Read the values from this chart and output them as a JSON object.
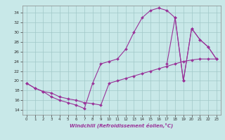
{
  "xlabel": "Windchill (Refroidissement éolien,°C)",
  "xlim": [
    -0.5,
    23.5
  ],
  "ylim": [
    13.0,
    35.5
  ],
  "yticks": [
    14,
    16,
    18,
    20,
    22,
    24,
    26,
    28,
    30,
    32,
    34
  ],
  "xticks": [
    0,
    1,
    2,
    3,
    4,
    5,
    6,
    7,
    8,
    9,
    10,
    11,
    12,
    13,
    14,
    15,
    16,
    17,
    18,
    19,
    20,
    21,
    22,
    23
  ],
  "background_color": "#c8e8e8",
  "grid_color": "#a0c8c8",
  "line_color": "#993399",
  "curve1_x": [
    0,
    1,
    2,
    3,
    4,
    5,
    6,
    7,
    8,
    9,
    10,
    11,
    12,
    13,
    14,
    15,
    16,
    17,
    18,
    19,
    20,
    21,
    22,
    23
  ],
  "curve1_y": [
    19.5,
    18.5,
    17.8,
    16.7,
    16.0,
    15.5,
    15.0,
    14.3,
    19.5,
    23.5,
    24.0,
    24.5,
    26.5,
    30.0,
    33.0,
    34.5,
    35.0,
    34.5,
    33.0,
    20.0,
    30.8,
    28.5,
    27.0,
    24.5
  ],
  "curve2_x": [
    0,
    1,
    2,
    3,
    4,
    5,
    6,
    7,
    8,
    9,
    10,
    11,
    12,
    13,
    14,
    15,
    16,
    17,
    18,
    19,
    20,
    21,
    22,
    23
  ],
  "curve2_y": [
    19.5,
    18.5,
    17.8,
    17.5,
    16.7,
    16.3,
    16.0,
    15.5,
    15.3,
    15.0,
    19.5,
    20.0,
    20.5,
    21.0,
    21.5,
    22.0,
    22.5,
    23.0,
    23.5,
    24.0,
    24.3,
    24.5,
    24.5,
    24.5
  ],
  "curve3_x": [
    17,
    18,
    19,
    20,
    21,
    22,
    23
  ],
  "curve3_y": [
    23.5,
    33.0,
    20.0,
    30.8,
    28.5,
    27.0,
    24.5
  ]
}
